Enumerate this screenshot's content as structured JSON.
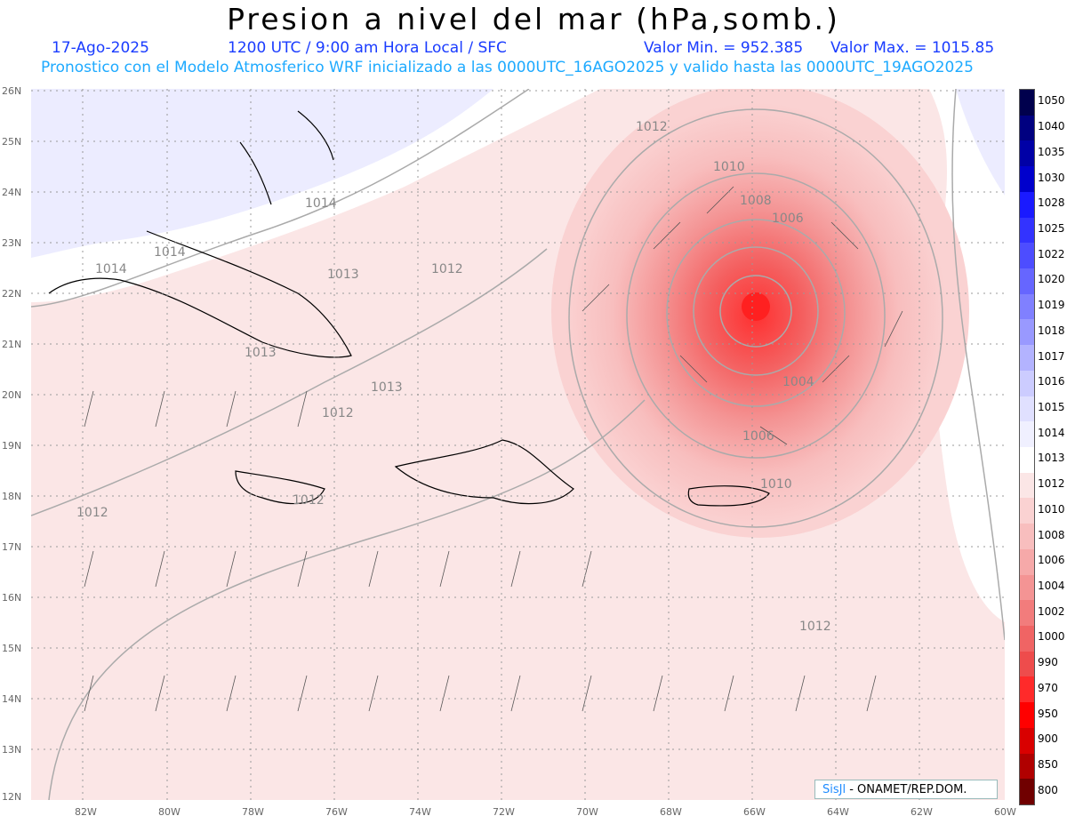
{
  "title": "Presion a nivel del mar (hPa,somb.)",
  "date": "17-Ago-2025",
  "time_text": "1200 UTC / 9:00 am Hora Local / SFC",
  "min_text": "Valor Min. = 952.385",
  "max_text": "Valor Max. = 1015.85",
  "forecast_text": "Pronostico con el Modelo Atmosferico WRF inicializado a las 0000UTC_16AGO2025 y valido hasta las  0000UTC_19AGO2025",
  "lat_ticks": [
    "26N",
    "25N",
    "24N",
    "23N",
    "22N",
    "21N",
    "20N",
    "19N",
    "18N",
    "17N",
    "16N",
    "15N",
    "14N",
    "13N",
    "12N"
  ],
  "lon_ticks": [
    "82W",
    "80W",
    "78W",
    "76W",
    "74W",
    "72W",
    "70W",
    "68W",
    "66W",
    "64W",
    "62W",
    "60W"
  ],
  "colorbar": [
    {
      "label": "1050",
      "color": "#00004d"
    },
    {
      "label": "1040",
      "color": "#000080"
    },
    {
      "label": "1035",
      "color": "#0000a6"
    },
    {
      "label": "1030",
      "color": "#0000cc"
    },
    {
      "label": "1028",
      "color": "#1a1aff"
    },
    {
      "label": "1025",
      "color": "#3333ff"
    },
    {
      "label": "1022",
      "color": "#4d4dff"
    },
    {
      "label": "1020",
      "color": "#6666ff"
    },
    {
      "label": "1019",
      "color": "#8080ff"
    },
    {
      "label": "1018",
      "color": "#9999ff"
    },
    {
      "label": "1017",
      "color": "#b3b3ff"
    },
    {
      "label": "1016",
      "color": "#ccccff"
    },
    {
      "label": "1015",
      "color": "#e0e0ff"
    },
    {
      "label": "1014",
      "color": "#f0f0ff"
    },
    {
      "label": "1013",
      "color": "#ffffff"
    },
    {
      "label": "1012",
      "color": "#fbe6e6"
    },
    {
      "label": "1010",
      "color": "#fad2d2"
    },
    {
      "label": "1008",
      "color": "#f8bebe"
    },
    {
      "label": "1006",
      "color": "#f6a9a9"
    },
    {
      "label": "1004",
      "color": "#f49494"
    },
    {
      "label": "1002",
      "color": "#f27c7c"
    },
    {
      "label": "1000",
      "color": "#f06464"
    },
    {
      "label": "990",
      "color": "#ee4c4c"
    },
    {
      "label": "970",
      "color": "#ff2a2a"
    },
    {
      "label": "950",
      "color": "#ff0000"
    },
    {
      "label": "900",
      "color": "#d90000"
    },
    {
      "label": "850",
      "color": "#b00000"
    },
    {
      "label": "800",
      "color": "#700000"
    }
  ],
  "contour_labels": [
    {
      "text": "1012"
    },
    {
      "text": "1010"
    },
    {
      "text": "1008"
    },
    {
      "text": "1006"
    },
    {
      "text": "1014"
    },
    {
      "text": "1014"
    },
    {
      "text": "1014"
    },
    {
      "text": "1013"
    },
    {
      "text": "1012"
    },
    {
      "text": "1013"
    },
    {
      "text": "1013"
    },
    {
      "text": "1012"
    },
    {
      "text": "1004"
    },
    {
      "text": "1006"
    },
    {
      "text": "1010"
    },
    {
      "text": "1012"
    },
    {
      "text": "1012"
    },
    {
      "text": "1012"
    }
  ],
  "badge": {
    "sis": "SisJl",
    "org": " - ONAMET/REP.DOM."
  }
}
